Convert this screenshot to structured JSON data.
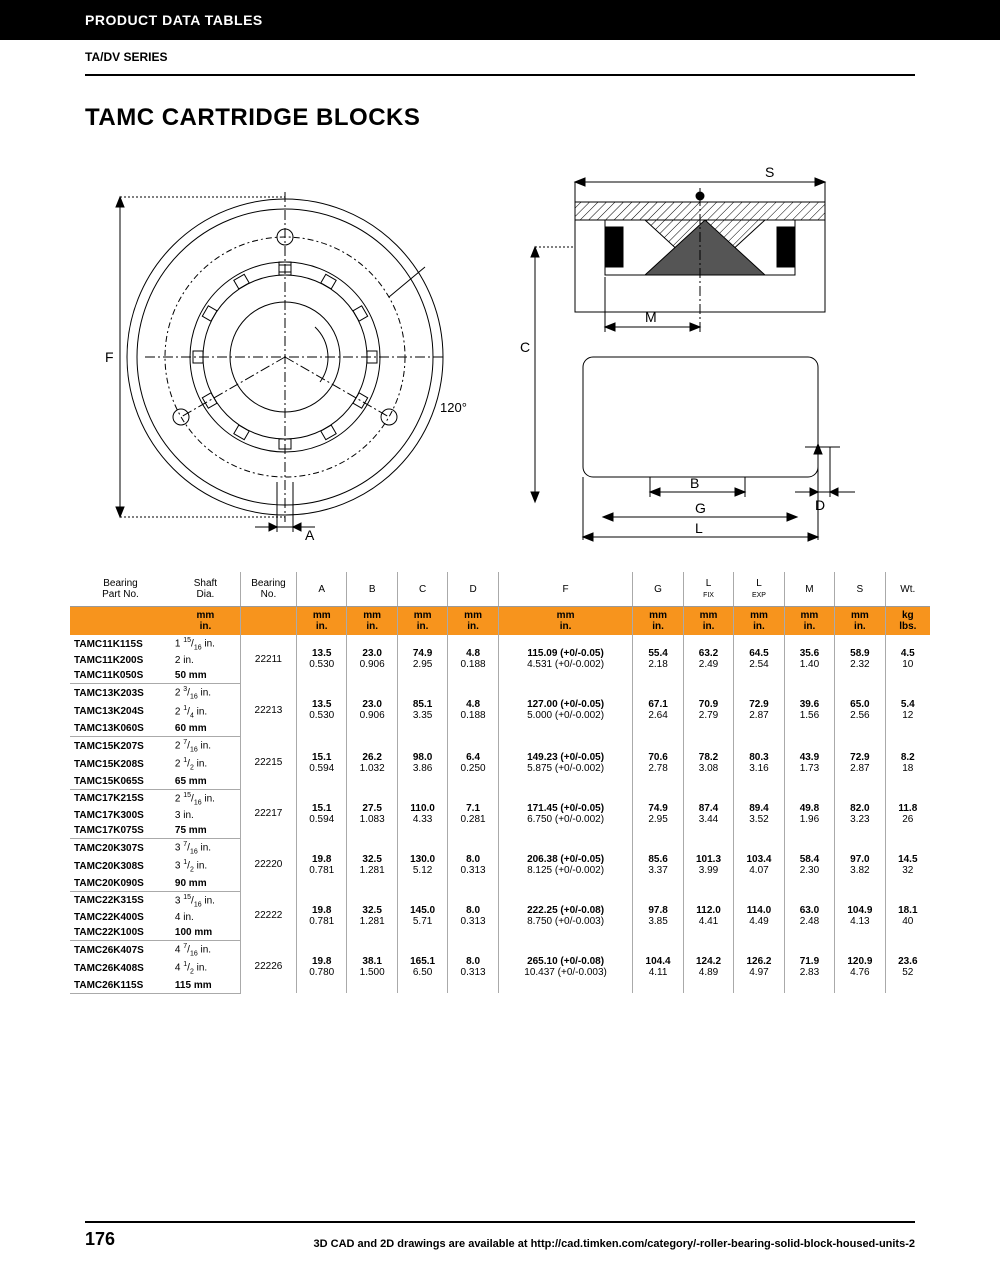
{
  "header": {
    "section": "PRODUCT DATA TABLES",
    "series": "TA/DV SERIES",
    "title": "TAMC CARTRIDGE BLOCKS"
  },
  "diagram": {
    "labels": {
      "F": "F",
      "A": "A",
      "angle": "120°",
      "S": "S",
      "M": "M",
      "C": "C",
      "B": "B",
      "D": "D",
      "G": "G",
      "L": "L"
    },
    "stroke": "#000"
  },
  "table": {
    "headers": [
      "Bearing\nPart No.",
      "Shaft\nDia.",
      "Bearing\nNo.",
      "A",
      "B",
      "C",
      "D",
      "F",
      "G",
      "L\nFIX",
      "L\nEXP",
      "M",
      "S",
      "Wt."
    ],
    "units1": [
      "",
      "mm",
      "",
      "mm",
      "mm",
      "mm",
      "mm",
      "mm",
      "mm",
      "mm",
      "mm",
      "mm",
      "mm",
      "kg"
    ],
    "units2": [
      "",
      "in.",
      "",
      "in.",
      "in.",
      "in.",
      "in.",
      "in.",
      "in.",
      "in.",
      "in.",
      "in.",
      "in.",
      "lbs."
    ],
    "unitsColor": "#f7941d",
    "groups": [
      {
        "parts": [
          [
            "TAMC11K115S",
            "1 15/16 in."
          ],
          [
            "TAMC11K200S",
            "2 in."
          ],
          [
            "TAMC11K050S",
            "50 mm"
          ]
        ],
        "bearing": "22211",
        "cols": [
          [
            "13.5",
            "0.530"
          ],
          [
            "23.0",
            "0.906"
          ],
          [
            "74.9",
            "2.95"
          ],
          [
            "4.8",
            "0.188"
          ],
          [
            "115.09 (+0/-0.05)",
            "4.531 (+0/-0.002)"
          ],
          [
            "55.4",
            "2.18"
          ],
          [
            "63.2",
            "2.49"
          ],
          [
            "64.5",
            "2.54"
          ],
          [
            "35.6",
            "1.40"
          ],
          [
            "58.9",
            "2.32"
          ],
          [
            "4.5",
            "10"
          ]
        ]
      },
      {
        "parts": [
          [
            "TAMC13K203S",
            "2 3/16 in."
          ],
          [
            "TAMC13K204S",
            "2 1/4 in."
          ],
          [
            "TAMC13K060S",
            "60 mm"
          ]
        ],
        "bearing": "22213",
        "cols": [
          [
            "13.5",
            "0.530"
          ],
          [
            "23.0",
            "0.906"
          ],
          [
            "85.1",
            "3.35"
          ],
          [
            "4.8",
            "0.188"
          ],
          [
            "127.00 (+0/-0.05)",
            "5.000 (+0/-0.002)"
          ],
          [
            "67.1",
            "2.64"
          ],
          [
            "70.9",
            "2.79"
          ],
          [
            "72.9",
            "2.87"
          ],
          [
            "39.6",
            "1.56"
          ],
          [
            "65.0",
            "2.56"
          ],
          [
            "5.4",
            "12"
          ]
        ]
      },
      {
        "parts": [
          [
            "TAMC15K207S",
            "2 7/16 in."
          ],
          [
            "TAMC15K208S",
            "2 1/2 in."
          ],
          [
            "TAMC15K065S",
            "65 mm"
          ]
        ],
        "bearing": "22215",
        "cols": [
          [
            "15.1",
            "0.594"
          ],
          [
            "26.2",
            "1.032"
          ],
          [
            "98.0",
            "3.86"
          ],
          [
            "6.4",
            "0.250"
          ],
          [
            "149.23 (+0/-0.05)",
            "5.875 (+0/-0.002)"
          ],
          [
            "70.6",
            "2.78"
          ],
          [
            "78.2",
            "3.08"
          ],
          [
            "80.3",
            "3.16"
          ],
          [
            "43.9",
            "1.73"
          ],
          [
            "72.9",
            "2.87"
          ],
          [
            "8.2",
            "18"
          ]
        ]
      },
      {
        "parts": [
          [
            "TAMC17K215S",
            "2 15/16 in."
          ],
          [
            "TAMC17K300S",
            "3 in."
          ],
          [
            "TAMC17K075S",
            "75 mm"
          ]
        ],
        "bearing": "22217",
        "cols": [
          [
            "15.1",
            "0.594"
          ],
          [
            "27.5",
            "1.083"
          ],
          [
            "110.0",
            "4.33"
          ],
          [
            "7.1",
            "0.281"
          ],
          [
            "171.45 (+0/-0.05)",
            "6.750 (+0/-0.002)"
          ],
          [
            "74.9",
            "2.95"
          ],
          [
            "87.4",
            "3.44"
          ],
          [
            "89.4",
            "3.52"
          ],
          [
            "49.8",
            "1.96"
          ],
          [
            "82.0",
            "3.23"
          ],
          [
            "11.8",
            "26"
          ]
        ]
      },
      {
        "parts": [
          [
            "TAMC20K307S",
            "3 7/16 in."
          ],
          [
            "TAMC20K308S",
            "3 1/2 in."
          ],
          [
            "TAMC20K090S",
            "90 mm"
          ]
        ],
        "bearing": "22220",
        "cols": [
          [
            "19.8",
            "0.781"
          ],
          [
            "32.5",
            "1.281"
          ],
          [
            "130.0",
            "5.12"
          ],
          [
            "8.0",
            "0.313"
          ],
          [
            "206.38 (+0/-0.05)",
            "8.125 (+0/-0.002)"
          ],
          [
            "85.6",
            "3.37"
          ],
          [
            "101.3",
            "3.99"
          ],
          [
            "103.4",
            "4.07"
          ],
          [
            "58.4",
            "2.30"
          ],
          [
            "97.0",
            "3.82"
          ],
          [
            "14.5",
            "32"
          ]
        ]
      },
      {
        "parts": [
          [
            "TAMC22K315S",
            "3 15/16 in."
          ],
          [
            "TAMC22K400S",
            "4 in."
          ],
          [
            "TAMC22K100S",
            "100 mm"
          ]
        ],
        "bearing": "22222",
        "cols": [
          [
            "19.8",
            "0.781"
          ],
          [
            "32.5",
            "1.281"
          ],
          [
            "145.0",
            "5.71"
          ],
          [
            "8.0",
            "0.313"
          ],
          [
            "222.25 (+0/-0.08)",
            "8.750 (+0/-0.003)"
          ],
          [
            "97.8",
            "3.85"
          ],
          [
            "112.0",
            "4.41"
          ],
          [
            "114.0",
            "4.49"
          ],
          [
            "63.0",
            "2.48"
          ],
          [
            "104.9",
            "4.13"
          ],
          [
            "18.1",
            "40"
          ]
        ]
      },
      {
        "parts": [
          [
            "TAMC26K407S",
            "4 7/16 in."
          ],
          [
            "TAMC26K408S",
            "4 1/2 in."
          ],
          [
            "TAMC26K115S",
            "115 mm"
          ]
        ],
        "bearing": "22226",
        "cols": [
          [
            "19.8",
            "0.780"
          ],
          [
            "38.1",
            "1.500"
          ],
          [
            "165.1",
            "6.50"
          ],
          [
            "8.0",
            "0.313"
          ],
          [
            "265.10 (+0/-0.08)",
            "10.437 (+0/-0.003)"
          ],
          [
            "104.4",
            "4.11"
          ],
          [
            "124.2",
            "4.89"
          ],
          [
            "126.2",
            "4.97"
          ],
          [
            "71.9",
            "2.83"
          ],
          [
            "120.9",
            "4.76"
          ],
          [
            "23.6",
            "52"
          ]
        ]
      }
    ]
  },
  "footer": {
    "page": "176",
    "note": "3D CAD and 2D drawings are available at http://cad.timken.com/category/-roller-bearing-solid-block-housed-units-2"
  }
}
